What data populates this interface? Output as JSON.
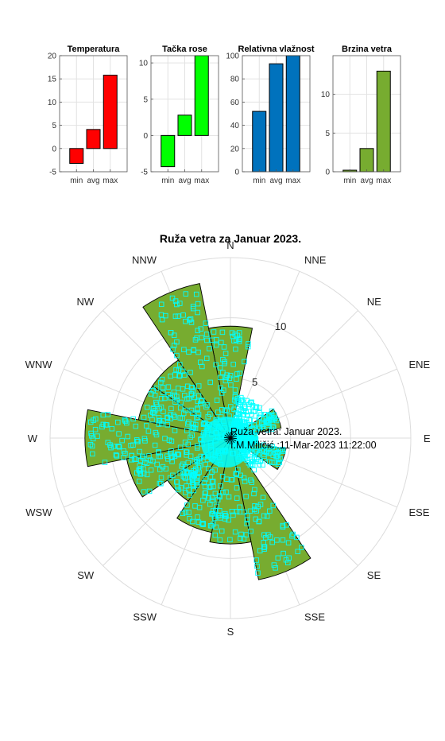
{
  "chart_data": [
    {
      "type": "bar",
      "title": "Temperatura",
      "categories": [
        "min",
        "avg",
        "max"
      ],
      "values": [
        -3.2,
        4.1,
        15.8
      ],
      "ylim": [
        -5,
        20
      ],
      "yticks": [
        -5,
        0,
        5,
        10,
        15,
        20
      ],
      "color": "#ff0000",
      "grid": true
    },
    {
      "type": "bar",
      "title": "Tačka rose",
      "categories": [
        "min",
        "avg",
        "max"
      ],
      "values": [
        -4.3,
        2.8,
        11
      ],
      "ylim": [
        -5,
        11
      ],
      "yticks": [
        -5,
        0,
        5,
        10
      ],
      "color": "#00ff00",
      "grid": true
    },
    {
      "type": "bar",
      "title": "Relativna vlažnost",
      "categories": [
        "min",
        "avg",
        "max"
      ],
      "values": [
        52,
        93,
        100
      ],
      "ylim": [
        0,
        100
      ],
      "yticks": [
        0,
        20,
        40,
        60,
        80,
        100
      ],
      "color": "#0072bd",
      "grid": true
    },
    {
      "type": "bar",
      "title": "Brzina vetra",
      "categories": [
        "min",
        "avg",
        "max"
      ],
      "values": [
        0.2,
        3,
        13
      ],
      "ylim": [
        0,
        15
      ],
      "yticks": [
        0,
        5,
        10
      ],
      "color": "#77ac30",
      "grid": true
    },
    {
      "type": "polar-histogram",
      "title": "Ruža vetra za Januar 2023.",
      "directions": [
        "N",
        "NNE",
        "NE",
        "ENE",
        "E",
        "ESE",
        "SE",
        "SSE",
        "S",
        "SSW",
        "SW",
        "WSW",
        "W",
        "WNW",
        "NW",
        "NNW"
      ],
      "sector_values": [
        9.3,
        0,
        0,
        4.3,
        2.2,
        4.7,
        0,
        12.0,
        8.8,
        8.0,
        6.3,
        8.8,
        12.1,
        7.8,
        7.8,
        13.1
      ],
      "sector_values_note": "sector lengths in km/h on the radial scale (rmax 15); sectors start at compass angle -11.25 + 22.5*i",
      "rlim": [
        0,
        15
      ],
      "rticks": [
        5,
        10
      ],
      "rtick_labels": [
        "5",
        "10"
      ],
      "fill_color": "#77ac30",
      "scatter_color": "#00ffff",
      "scatter_marker": "square",
      "annotation_lines": [
        "Ruža vetra: Januar 2023.",
        "I.M.Miličić :11-Mar-2023 11:22:00"
      ]
    }
  ]
}
